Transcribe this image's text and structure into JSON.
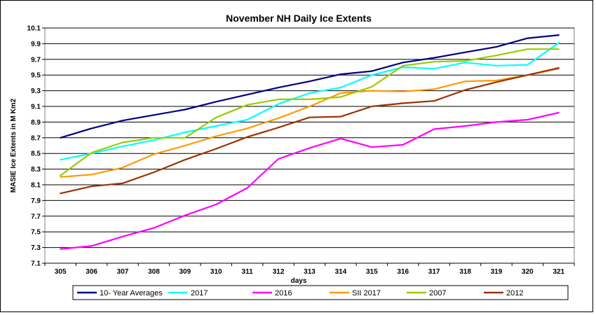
{
  "chart_data": {
    "type": "line",
    "title": "November NH Daily  Ice Extents",
    "xlabel": "days",
    "ylabel": "MASIE Ice Extents in M Km2",
    "x": [
      305,
      306,
      307,
      308,
      309,
      310,
      311,
      312,
      313,
      314,
      315,
      316,
      317,
      318,
      319,
      320,
      321
    ],
    "x_tick_labels": [
      "305",
      "306",
      "307",
      "308",
      "309",
      "310",
      "311",
      "312",
      "313",
      "314",
      "315",
      "316",
      "317",
      "318",
      "319",
      "320",
      "321"
    ],
    "ylim": [
      7.1,
      10.1
    ],
    "y_ticks": [
      7.1,
      7.3,
      7.5,
      7.7,
      7.9,
      8.1,
      8.3,
      8.5,
      8.7,
      8.9,
      9.1,
      9.3,
      9.5,
      9.7,
      9.9,
      10.1
    ],
    "y_tick_labels": [
      "7.1",
      "7.3",
      "7.5",
      "7.7",
      "7.9",
      "8.1",
      "8.3",
      "8.5",
      "8.7",
      "8.9",
      "9.1",
      "9.3",
      "9.5",
      "9.7",
      "9.9",
      "10.1"
    ],
    "grid": "horizontal",
    "legend_position": "bottom",
    "series": [
      {
        "name": "10- Year Averages",
        "color": "#000080",
        "values": [
          8.7,
          8.82,
          8.92,
          8.99,
          9.06,
          9.16,
          9.25,
          9.34,
          9.42,
          9.51,
          9.55,
          9.66,
          9.72,
          9.79,
          9.86,
          9.97,
          10.01
        ]
      },
      {
        "name": "2017",
        "color": "#00FFFF",
        "values": [
          8.42,
          8.5,
          8.59,
          8.67,
          8.77,
          8.85,
          8.93,
          9.13,
          9.27,
          9.34,
          9.5,
          9.6,
          9.58,
          9.66,
          9.62,
          9.63,
          9.91
        ]
      },
      {
        "name": "2016",
        "color": "#FF00FF",
        "values": [
          7.28,
          7.32,
          7.44,
          7.55,
          7.71,
          7.85,
          8.06,
          8.43,
          8.57,
          8.69,
          8.58,
          8.61,
          8.81,
          8.85,
          8.9,
          8.93,
          9.02
        ]
      },
      {
        "name": "SII 2017",
        "color": "#FF9900",
        "values": [
          8.2,
          8.23,
          8.32,
          8.49,
          8.6,
          8.72,
          8.82,
          8.95,
          9.1,
          9.27,
          9.3,
          9.29,
          9.32,
          9.42,
          9.43,
          9.5,
          9.58
        ]
      },
      {
        "name": "2007",
        "color": "#99CC00",
        "values": [
          8.22,
          8.51,
          8.64,
          8.7,
          8.7,
          8.96,
          9.12,
          9.19,
          9.19,
          9.22,
          9.35,
          9.62,
          9.67,
          9.68,
          9.75,
          9.83,
          9.83
        ]
      },
      {
        "name": "2012",
        "color": "#993300",
        "values": [
          7.99,
          8.08,
          8.12,
          8.26,
          8.42,
          8.56,
          8.71,
          8.83,
          8.96,
          8.97,
          9.1,
          9.14,
          9.17,
          9.31,
          9.41,
          9.5,
          9.59
        ]
      }
    ]
  }
}
